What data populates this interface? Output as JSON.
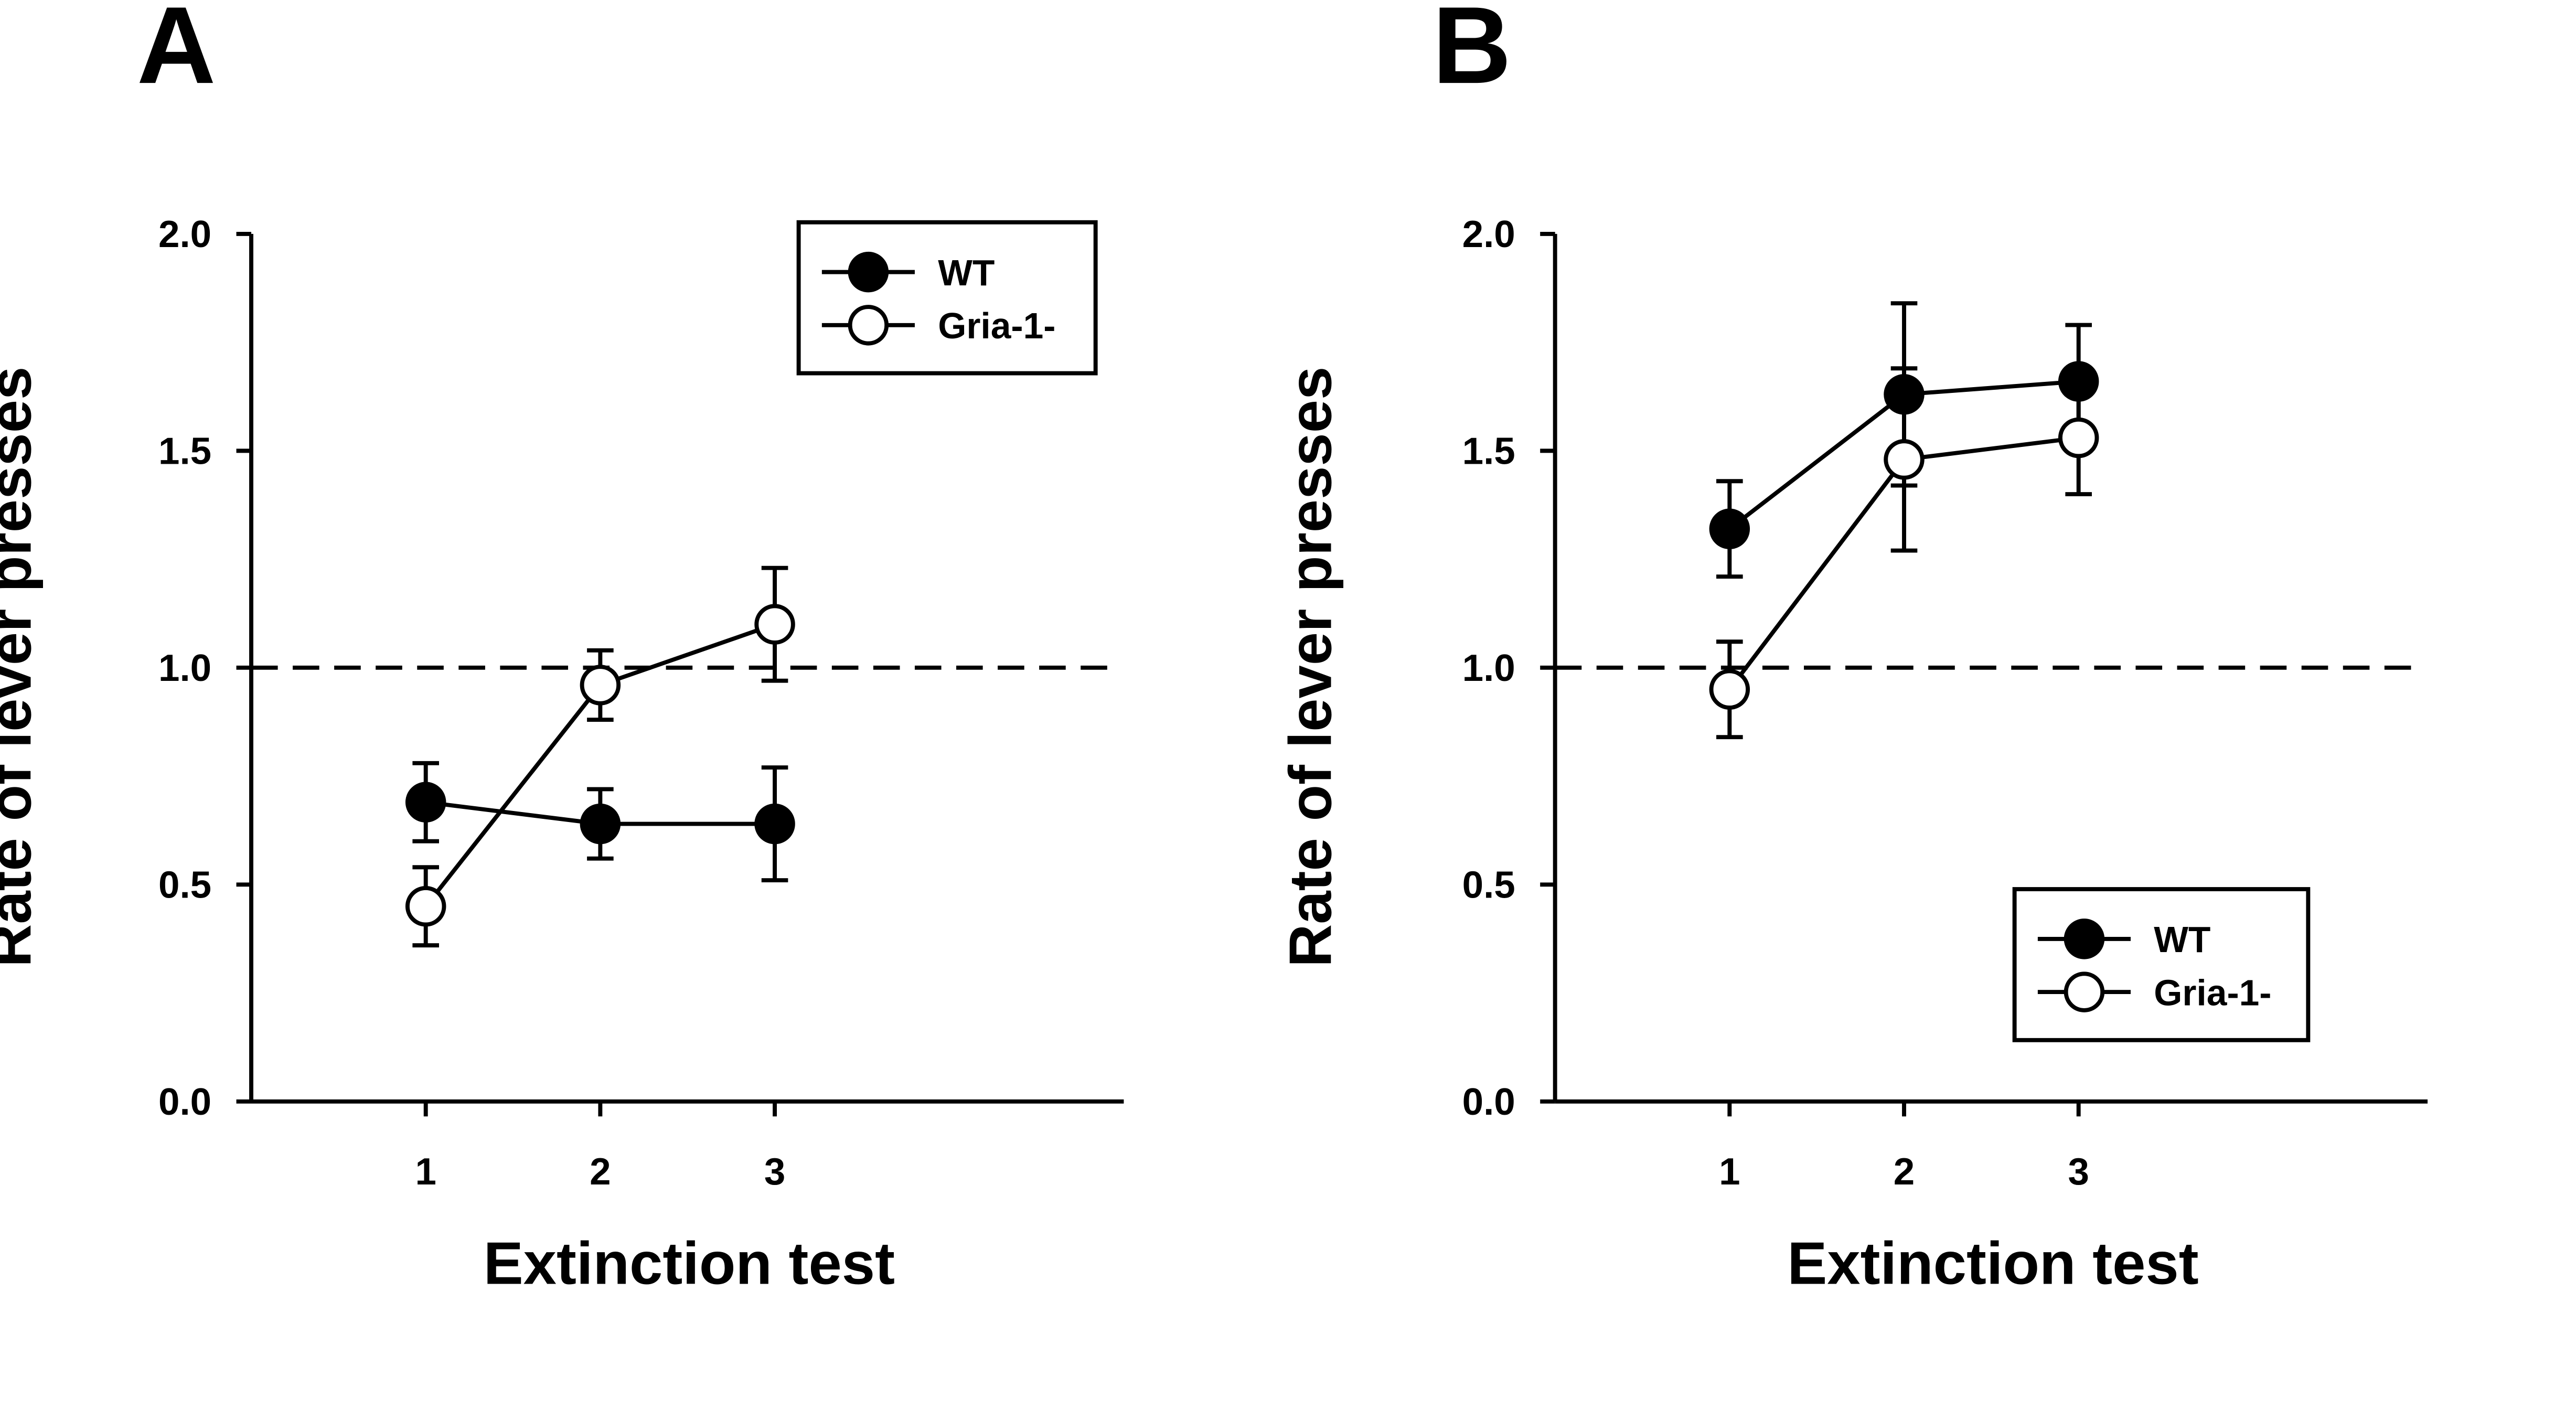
{
  "chart_data": [
    {
      "panel_label": "A",
      "type": "line",
      "xlabel": "Extinction test",
      "ylabel": "Rate of lever presses",
      "categories": [
        "1",
        "2",
        "3"
      ],
      "x": [
        1,
        2,
        3
      ],
      "xlim": [
        0,
        5
      ],
      "ylim": [
        0,
        2
      ],
      "yticks": [
        "0.0",
        "0.5",
        "1.0",
        "1.5",
        "2.0"
      ],
      "reference_line": {
        "y": 1.0,
        "style": "dashed"
      },
      "legend_placement": "top-right",
      "series": [
        {
          "name": "WT",
          "marker": "filled-circle",
          "values": [
            0.69,
            0.64,
            0.64
          ],
          "error": [
            0.09,
            0.08,
            0.13
          ]
        },
        {
          "name": "Gria-1-",
          "marker": "open-circle",
          "values": [
            0.45,
            0.96,
            1.1
          ],
          "error": [
            0.09,
            0.08,
            0.13
          ]
        }
      ],
      "legend": {
        "entries": [
          "WT",
          "Gria-1-"
        ]
      }
    },
    {
      "panel_label": "B",
      "type": "line",
      "xlabel": "Extinction test",
      "ylabel": "Rate of lever presses",
      "categories": [
        "1",
        "2",
        "3"
      ],
      "x": [
        1,
        2,
        3
      ],
      "xlim": [
        0,
        5
      ],
      "ylim": [
        0,
        2
      ],
      "yticks": [
        "0.0",
        "0.5",
        "1.0",
        "1.5",
        "2.0"
      ],
      "reference_line": {
        "y": 1.0,
        "style": "dashed"
      },
      "legend_placement": "bottom-right",
      "series": [
        {
          "name": "WT",
          "marker": "filled-circle",
          "values": [
            1.32,
            1.63,
            1.66
          ],
          "error": [
            0.11,
            0.21,
            0.13
          ]
        },
        {
          "name": "Gria-1-",
          "marker": "open-circle",
          "values": [
            0.95,
            1.48,
            1.53
          ],
          "error": [
            0.11,
            0.21,
            0.13
          ]
        }
      ],
      "legend": {
        "entries": [
          "WT",
          "Gria-1-"
        ]
      }
    }
  ]
}
